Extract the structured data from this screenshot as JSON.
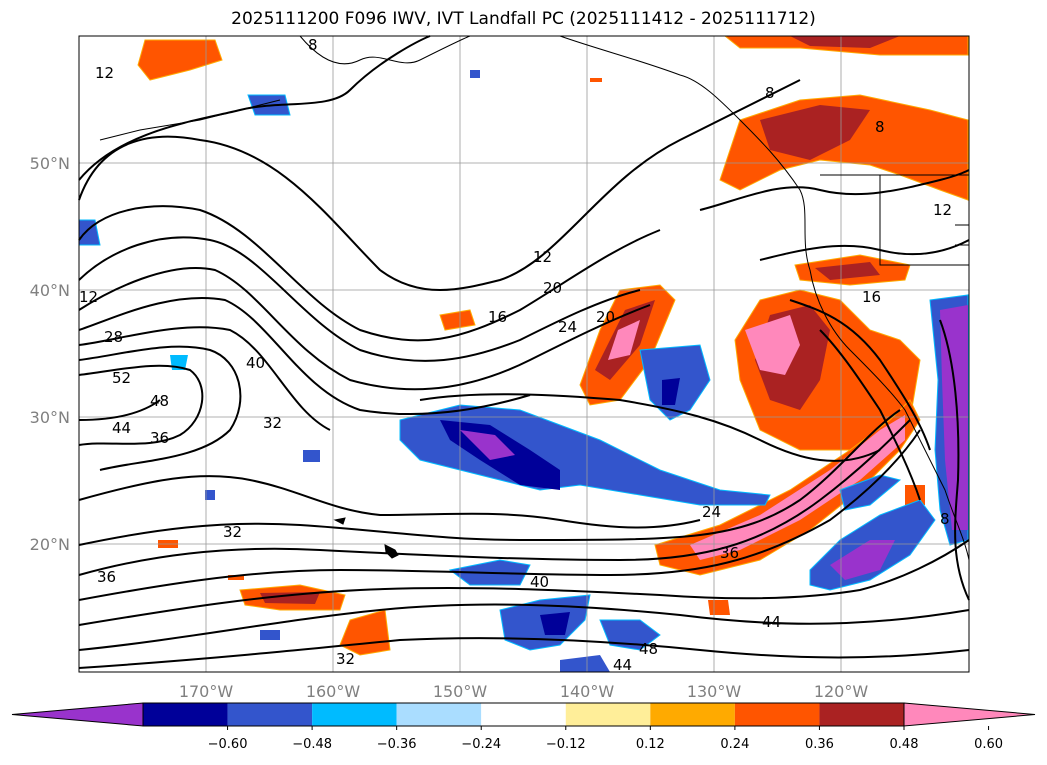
{
  "title": "2025111200 F096 IWV, IVT Landfall PC (2025111412 - 2025111712)",
  "lat_labels": [
    "50°N",
    "40°N",
    "30°N",
    "20°N"
  ],
  "lon_labels": [
    "170°W",
    "160°W",
    "150°W",
    "140°W",
    "130°W",
    "120°W"
  ],
  "colorbar": {
    "ticks": [
      "−0.60",
      "−0.48",
      "−0.36",
      "−0.24",
      "−0.12",
      "0.12",
      "0.24",
      "0.36",
      "0.48",
      "0.60"
    ],
    "colors": [
      "#9933cc",
      "#000099",
      "#3355cc",
      "#00bbff",
      "#aaddff",
      "#ffffff",
      "#ffee99",
      "#ffaa00",
      "#ff5500",
      "#aa2222",
      "#ff88bb"
    ]
  },
  "contour_labels": [
    "12",
    "8",
    "8",
    "8",
    "12",
    "12",
    "12",
    "20",
    "16",
    "24",
    "20",
    "28",
    "52",
    "48",
    "44",
    "36",
    "40",
    "32",
    "32",
    "36",
    "16",
    "24",
    "36",
    "40",
    "44",
    "48",
    "44",
    "8",
    "32"
  ]
}
